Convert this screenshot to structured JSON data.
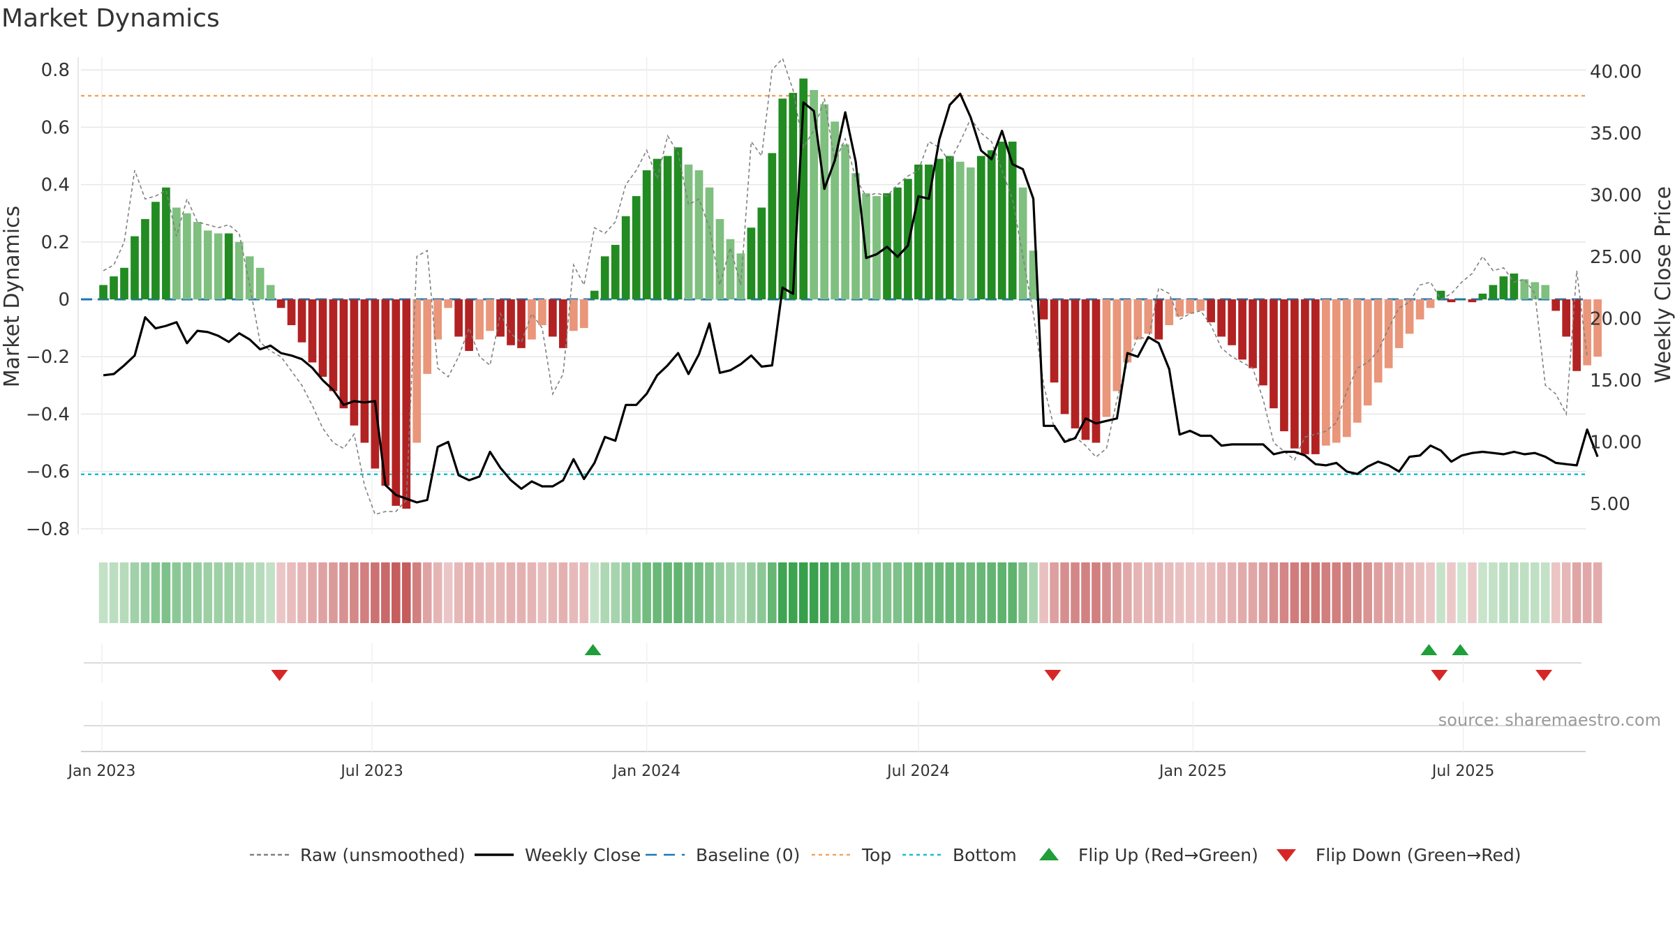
{
  "chart_data": {
    "type": "bar",
    "title": "Market Dynamics",
    "ylabel": "Market Dynamics",
    "y2label": "Weekly Close Price",
    "ylim": [
      -0.82,
      0.82
    ],
    "y2lim": [
      2.5,
      40.6
    ],
    "yticks": [
      "0.8",
      "0.6",
      "0.4",
      "0.2",
      "0",
      "−0.2",
      "−0.4",
      "−0.6",
      "−0.8"
    ],
    "yticks_values": [
      0.8,
      0.6,
      0.4,
      0.2,
      0,
      -0.2,
      -0.4,
      -0.6,
      -0.8
    ],
    "y2ticks": [
      "40.00",
      "35.00",
      "30.00",
      "25.00",
      "20.00",
      "15.00",
      "10.00",
      "5.00"
    ],
    "y2ticks_values": [
      40,
      35,
      30,
      25,
      20,
      15,
      10,
      5
    ],
    "x_start": "2023-01-02",
    "x_interval_days": 7,
    "x_range": [
      "2022-12-18",
      "2025-09-21"
    ],
    "xticks": [
      {
        "label": "Jan 2023",
        "date": "2023-01-01"
      },
      {
        "label": "Jul 2023",
        "date": "2023-07-01"
      },
      {
        "label": "Jan 2024",
        "date": "2024-01-01"
      },
      {
        "label": "Jul 2024",
        "date": "2024-07-01"
      },
      {
        "label": "Jan 2025",
        "date": "2025-01-01"
      },
      {
        "label": "Jul 2025",
        "date": "2025-07-01"
      }
    ],
    "grid": true,
    "legend_position": "bottom",
    "reference_lines": [
      {
        "name": "Baseline (0)",
        "value": 0,
        "color": "#1f77b4",
        "style": "dashed"
      },
      {
        "name": "Top",
        "value": 0.71,
        "color": "#f4a460",
        "style": "dotted"
      },
      {
        "name": "Bottom",
        "value": -0.61,
        "color": "#17becf",
        "style": "dotted"
      }
    ],
    "colors": {
      "up_strong": "#228b22",
      "up_weak": "#7fbf7f",
      "down_strong": "#b22222",
      "down_weak": "#e9967a",
      "raw": "#808080",
      "close": "#000000",
      "flip_up": "#1f9e3a",
      "flip_down": "#d62728"
    },
    "series": [
      {
        "name": "Market Dynamics",
        "values": [
          0.05,
          0.08,
          0.11,
          0.22,
          0.28,
          0.34,
          0.39,
          0.32,
          0.3,
          0.27,
          0.24,
          0.23,
          0.23,
          0.2,
          0.15,
          0.11,
          0.05,
          -0.03,
          -0.09,
          -0.15,
          -0.22,
          -0.27,
          -0.32,
          -0.38,
          -0.44,
          -0.5,
          -0.59,
          -0.65,
          -0.72,
          -0.73,
          -0.5,
          -0.26,
          -0.14,
          -0.03,
          -0.13,
          -0.18,
          -0.14,
          -0.11,
          -0.13,
          -0.16,
          -0.17,
          -0.14,
          -0.09,
          -0.13,
          -0.17,
          -0.11,
          -0.1,
          0.03,
          0.15,
          0.19,
          0.29,
          0.36,
          0.45,
          0.49,
          0.5,
          0.53,
          0.47,
          0.45,
          0.39,
          0.28,
          0.21,
          0.16,
          0.25,
          0.32,
          0.51,
          0.7,
          0.72,
          0.77,
          0.73,
          0.68,
          0.62,
          0.54,
          0.44,
          0.37,
          0.36,
          0.37,
          0.39,
          0.42,
          0.47,
          0.47,
          0.49,
          0.5,
          0.48,
          0.46,
          0.5,
          0.52,
          0.55,
          0.55,
          0.39,
          0.17,
          -0.07,
          -0.29,
          -0.4,
          -0.45,
          -0.49,
          -0.5,
          -0.41,
          -0.32,
          -0.22,
          -0.14,
          -0.12,
          -0.14,
          -0.09,
          -0.06,
          -0.05,
          -0.04,
          -0.08,
          -0.13,
          -0.16,
          -0.21,
          -0.24,
          -0.3,
          -0.38,
          -0.46,
          -0.52,
          -0.54,
          -0.54,
          -0.51,
          -0.5,
          -0.48,
          -0.43,
          -0.37,
          -0.29,
          -0.24,
          -0.17,
          -0.12,
          -0.07,
          -0.03,
          0.03,
          -0.01,
          0.0,
          -0.01,
          0.02,
          0.05,
          0.08,
          0.09,
          0.07,
          0.06,
          0.05,
          -0.04,
          -0.13,
          -0.25,
          -0.23,
          -0.2
        ]
      },
      {
        "name": "Raw (unsmoothed)",
        "values": [
          0.1,
          0.12,
          0.2,
          0.45,
          0.35,
          0.36,
          0.38,
          0.22,
          0.35,
          0.27,
          0.26,
          0.25,
          0.26,
          0.23,
          0.05,
          -0.15,
          -0.18,
          -0.2,
          -0.25,
          -0.3,
          -0.37,
          -0.45,
          -0.5,
          -0.52,
          -0.47,
          -0.65,
          -0.75,
          -0.74,
          -0.74,
          -0.7,
          0.15,
          0.17,
          -0.24,
          -0.27,
          -0.2,
          -0.1,
          -0.2,
          -0.23,
          -0.05,
          -0.12,
          -0.15,
          -0.05,
          -0.1,
          -0.33,
          -0.26,
          0.12,
          0.05,
          0.25,
          0.23,
          0.27,
          0.4,
          0.45,
          0.52,
          0.42,
          0.57,
          0.51,
          0.33,
          0.35,
          0.25,
          0.05,
          0.18,
          0.05,
          0.55,
          0.5,
          0.8,
          0.84,
          0.73,
          0.53,
          0.59,
          0.7,
          0.48,
          0.56,
          0.42,
          0.36,
          0.37,
          0.36,
          0.4,
          0.43,
          0.45,
          0.55,
          0.53,
          0.48,
          0.55,
          0.63,
          0.58,
          0.55,
          0.45,
          0.35,
          0.15,
          -0.05,
          -0.3,
          -0.45,
          -0.49,
          -0.48,
          -0.51,
          -0.55,
          -0.52,
          -0.35,
          -0.22,
          -0.13,
          -0.14,
          0.04,
          0.02,
          -0.07,
          -0.05,
          -0.04,
          -0.09,
          -0.17,
          -0.2,
          -0.22,
          -0.24,
          -0.35,
          -0.5,
          -0.53,
          -0.56,
          -0.48,
          -0.47,
          -0.46,
          -0.43,
          -0.32,
          -0.24,
          -0.22,
          -0.18,
          -0.1,
          -0.03,
          -0.01,
          0.05,
          0.06,
          0.0,
          0.02,
          0.06,
          0.09,
          0.15,
          0.1,
          0.11,
          0.06,
          0.07,
          0.02,
          -0.3,
          -0.33,
          -0.4,
          0.1,
          -0.2
        ]
      },
      {
        "name": "Weekly Close",
        "values": [
          15.4,
          15.5,
          16.2,
          17.0,
          20.1,
          19.2,
          19.4,
          19.7,
          18.0,
          19.0,
          18.9,
          18.6,
          18.1,
          18.8,
          18.3,
          17.5,
          17.8,
          17.2,
          17.0,
          16.7,
          16.0,
          15.0,
          14.2,
          13.0,
          13.3,
          13.2,
          13.3,
          6.5,
          5.7,
          5.4,
          5.1,
          5.3,
          9.6,
          10.0,
          7.3,
          6.9,
          7.2,
          9.2,
          7.9,
          6.9,
          6.2,
          6.8,
          6.4,
          6.4,
          6.9,
          8.6,
          7.0,
          8.3,
          10.4,
          10.1,
          13.0,
          13.0,
          13.9,
          15.4,
          16.2,
          17.2,
          15.5,
          17.1,
          19.6,
          15.6,
          15.8,
          16.3,
          17.0,
          16.1,
          16.2,
          22.5,
          22.0,
          37.5,
          36.8,
          30.5,
          32.8,
          36.7,
          32.7,
          24.9,
          25.2,
          25.8,
          25.0,
          25.9,
          29.9,
          29.7,
          34.5,
          37.3,
          38.2,
          36.3,
          33.6,
          32.9,
          35.2,
          32.5,
          32.1,
          29.7,
          11.3,
          11.3,
          10.0,
          10.3,
          11.9,
          11.5,
          11.7,
          11.9,
          17.2,
          16.9,
          18.5,
          18.0,
          15.9,
          10.6,
          10.9,
          10.5,
          10.5,
          9.7,
          9.8,
          9.8,
          9.8,
          9.8,
          9.0,
          9.2,
          9.2,
          8.9,
          8.2,
          8.1,
          8.3,
          7.6,
          7.4,
          8.0,
          8.4,
          8.1,
          7.6,
          8.8,
          8.9,
          9.7,
          9.3,
          8.4,
          8.9,
          9.1,
          9.2,
          9.1,
          9.0,
          9.2,
          9.0,
          9.1,
          8.8,
          8.3,
          8.2,
          8.1,
          11.0,
          8.8
        ]
      }
    ],
    "flips": [
      {
        "type": "down",
        "date": "2023-04-30"
      },
      {
        "type": "up",
        "date": "2023-11-26"
      },
      {
        "type": "down",
        "date": "2024-09-29"
      },
      {
        "type": "up",
        "date": "2025-06-08"
      },
      {
        "type": "down",
        "date": "2025-06-15"
      },
      {
        "type": "up",
        "date": "2025-06-29"
      },
      {
        "type": "down",
        "date": "2025-08-24"
      }
    ],
    "heat_row": "strength of Market Dynamics per week, same values as bars"
  },
  "legend": {
    "items": [
      {
        "label": "Raw (unsmoothed)",
        "symbol": "dashed",
        "color": "#808080"
      },
      {
        "label": "Weekly Close",
        "symbol": "solid",
        "color": "#000000"
      },
      {
        "label": "Baseline (0)",
        "symbol": "dash",
        "color": "#1f77b4"
      },
      {
        "label": "Top",
        "symbol": "dotted",
        "color": "#f4a460"
      },
      {
        "label": "Bottom",
        "symbol": "dotted",
        "color": "#17becf"
      },
      {
        "label": "Flip Up (Red→Green)",
        "symbol": "triangle-up",
        "color": "#1f9e3a"
      },
      {
        "label": "Flip Down (Green→Red)",
        "symbol": "triangle-down",
        "color": "#d62728"
      }
    ]
  },
  "source": "source: sharemaestro.com"
}
